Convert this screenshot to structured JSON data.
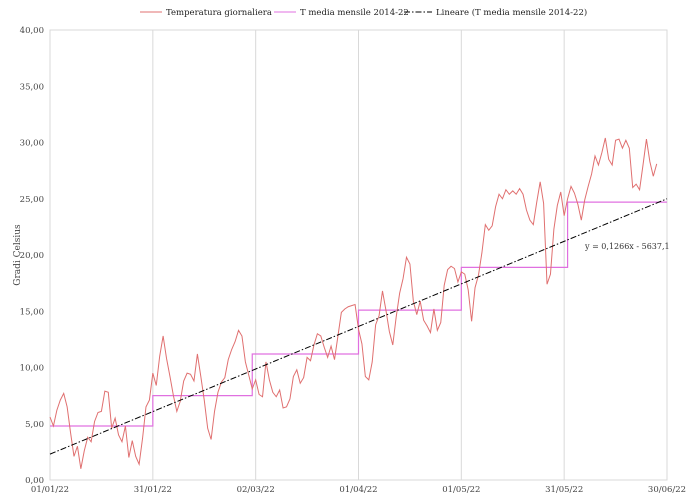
{
  "chart_data": {
    "type": "line",
    "ylabel": "Gradi Celsius",
    "ylim": [
      0,
      40
    ],
    "y_ticks": [
      "0,00",
      "5,00",
      "10,00",
      "15,00",
      "20,00",
      "25,00",
      "30,00",
      "35,00",
      "40,00"
    ],
    "x_ticks": [
      "01/01/22",
      "31/01/22",
      "02/03/22",
      "01/04/22",
      "01/05/22",
      "31/05/22",
      "30/06/22"
    ],
    "x_tick_days": [
      0,
      30,
      60,
      90,
      120,
      150,
      180
    ],
    "grid": "vertical",
    "legend_position": "top",
    "trend_equation": "y = 0,1266x - 5637,1",
    "series": [
      {
        "name": "Temperatura giornaliera",
        "color": "#e07070",
        "style": "line",
        "values": [
          5.6,
          4.8,
          6.2,
          7.1,
          7.7,
          6.5,
          4.2,
          2.1,
          3.0,
          1.0,
          2.6,
          3.8,
          3.4,
          5.2,
          6.0,
          6.1,
          7.9,
          7.8,
          4.6,
          5.5,
          4.0,
          3.4,
          4.8,
          2.0,
          3.5,
          2.1,
          1.4,
          3.7,
          6.5,
          7.1,
          9.5,
          8.4,
          11.0,
          12.8,
          10.8,
          9.2,
          7.5,
          6.1,
          7.0,
          8.8,
          9.5,
          9.4,
          8.8,
          11.2,
          9.2,
          7.1,
          4.6,
          3.6,
          6.1,
          7.8,
          8.7,
          9.1,
          10.7,
          11.6,
          12.3,
          13.3,
          12.8,
          10.5,
          9.3,
          8.1,
          8.9,
          7.6,
          7.4,
          10.5,
          8.9,
          7.8,
          7.4,
          8.0,
          6.4,
          6.5,
          7.2,
          9.2,
          9.8,
          8.6,
          9.1,
          10.9,
          10.6,
          12.0,
          13.0,
          12.8,
          11.8,
          10.9,
          11.9,
          10.7,
          12.8,
          14.9,
          15.2,
          15.4,
          15.5,
          15.6,
          13.4,
          12.1,
          9.2,
          8.9,
          10.5,
          13.8,
          14.6,
          16.8,
          15.1,
          13.2,
          12.0,
          14.5,
          16.6,
          17.9,
          19.8,
          19.2,
          15.9,
          14.7,
          15.9,
          14.2,
          13.7,
          13.1,
          15.2,
          13.3,
          14.0,
          17.3,
          18.7,
          19.0,
          18.8,
          17.6,
          18.5,
          18.3,
          16.9,
          14.1,
          17.1,
          18.2,
          20.2,
          22.7,
          22.2,
          22.6,
          24.3,
          25.4,
          25.0,
          25.8,
          25.4,
          25.7,
          25.4,
          25.9,
          25.4,
          24.0,
          23.1,
          22.7,
          24.7,
          26.5,
          24.6,
          17.4,
          18.3,
          22.3,
          24.4,
          25.6,
          23.5,
          25.0,
          26.1,
          25.5,
          24.5,
          23.1,
          24.9,
          26.1,
          27.2,
          28.8,
          28.0,
          29.1,
          30.4,
          28.5,
          28.0,
          30.2,
          30.3,
          29.5,
          30.2,
          29.5,
          26.0,
          26.3,
          25.8,
          28.0,
          30.3,
          28.3,
          27.0,
          28.1
        ]
      },
      {
        "name": "T media mensile 2014-22",
        "color": "#e070e0",
        "style": "step",
        "monthly_values": [
          4.8,
          7.5,
          11.2,
          15.1,
          18.9,
          24.7
        ]
      },
      {
        "name": "Lineare (T media mensile 2014-22)",
        "color": "#000000",
        "style": "dash-dot",
        "start": 2.3,
        "end": 25.0
      }
    ]
  }
}
